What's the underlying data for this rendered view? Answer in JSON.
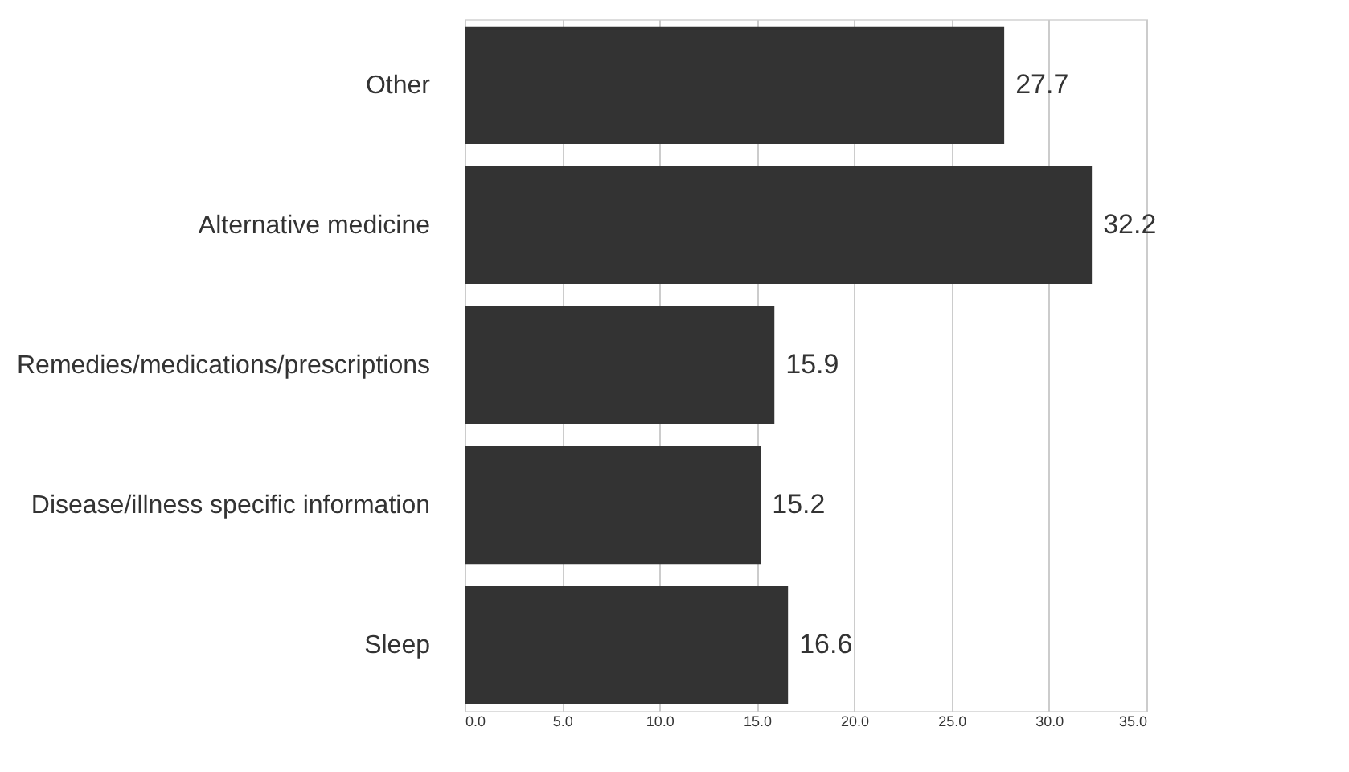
{
  "chart_data": {
    "type": "bar",
    "orientation": "horizontal",
    "categories": [
      "Other",
      "Alternative medicine",
      "Remedies/medications/prescriptions",
      "Disease/illness specific information",
      "Sleep"
    ],
    "values": [
      27.7,
      32.2,
      15.9,
      15.2,
      16.6
    ],
    "color": "#333333",
    "xlim": [
      0,
      35
    ],
    "xticks": [
      {
        "value": 0,
        "label": "0.0"
      },
      {
        "value": 5,
        "label": "5.0"
      },
      {
        "value": 10,
        "label": "10.0"
      },
      {
        "value": 15,
        "label": "15.0"
      },
      {
        "value": 20,
        "label": "20.0"
      },
      {
        "value": 25,
        "label": "25.0"
      },
      {
        "value": 30,
        "label": "30.0"
      },
      {
        "value": 35,
        "label": "35.0"
      }
    ],
    "grid": "x",
    "data_labels": true
  }
}
